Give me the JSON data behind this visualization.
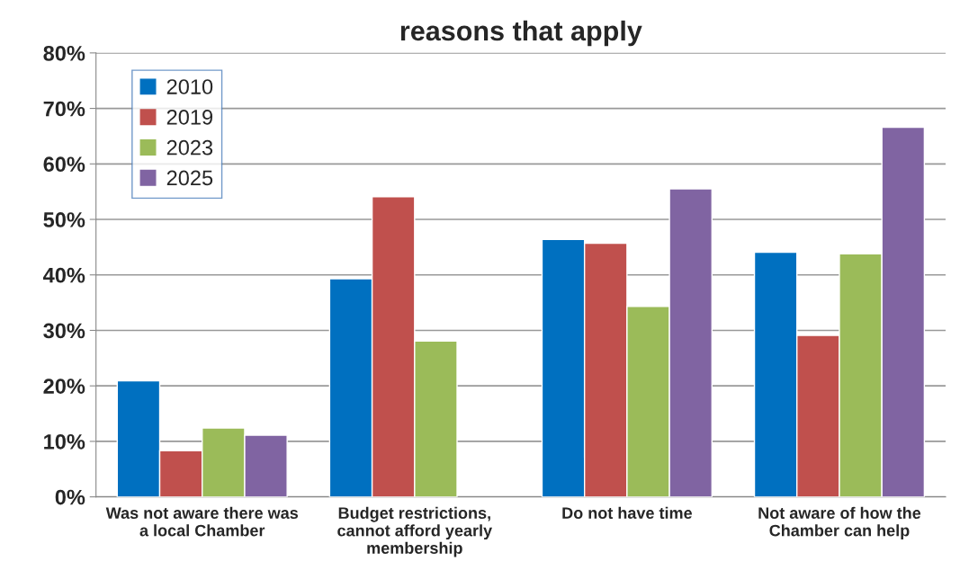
{
  "chart_data": {
    "type": "bar",
    "title": "reasons that apply",
    "categories": [
      "Was not aware there was\na local Chamber",
      "Budget restrictions,\ncannot afford yearly\nmembership",
      "Do not have time",
      "Not aware of how the\nChamber can help"
    ],
    "series": [
      {
        "name": "2010",
        "color": "#0070c0",
        "values": [
          20.9,
          39.3,
          46.4,
          44.1
        ]
      },
      {
        "name": "2019",
        "color": "#c0504d",
        "values": [
          8.3,
          54.1,
          45.7,
          29.1
        ]
      },
      {
        "name": "2023",
        "color": "#9bbb59",
        "values": [
          12.4,
          28.1,
          34.3,
          43.8
        ]
      },
      {
        "name": "2025",
        "color": "#8064a2",
        "values": [
          11.1,
          null,
          55.5,
          66.6
        ]
      }
    ],
    "ylim": [
      0,
      80
    ],
    "yticks": [
      {
        "value": 0,
        "label": "0%"
      },
      {
        "value": 10,
        "label": "10%"
      },
      {
        "value": 20,
        "label": "20%"
      },
      {
        "value": 30,
        "label": "30%"
      },
      {
        "value": 40,
        "label": "40%"
      },
      {
        "value": 50,
        "label": "50%"
      },
      {
        "value": 60,
        "label": "60%"
      },
      {
        "value": 70,
        "label": "70%"
      },
      {
        "value": 80,
        "label": "80%"
      }
    ],
    "grid": "y",
    "legend": "top left"
  }
}
